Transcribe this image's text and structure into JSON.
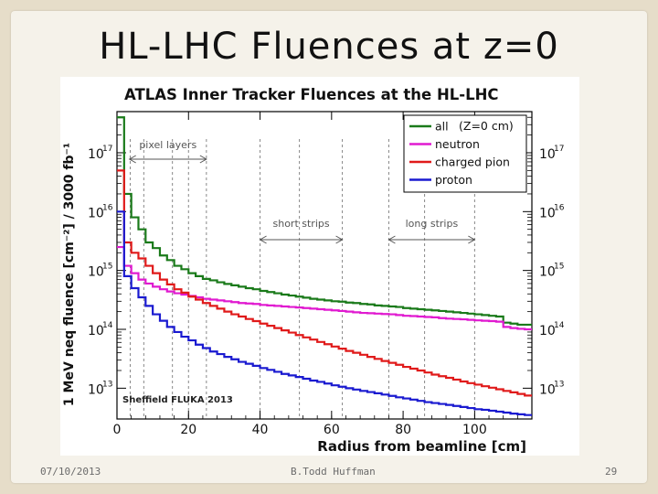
{
  "slide": {
    "title": "HL-LHC Fluences at z=0",
    "date": "07/10/2013",
    "author": "B.Todd Huffman",
    "page": "29"
  },
  "chart_data": {
    "type": "line",
    "title": "ATLAS Inner Tracker Fluences at the HL-LHC",
    "xlabel": "Radius from beamline [cm]",
    "ylabel": "1 MeV neq fluence [cm⁻²] / 3000 fb⁻¹",
    "xlim": [
      0,
      116
    ],
    "ylim": [
      3000000000000.0,
      5e+17
    ],
    "y_scale": "log",
    "x_ticks": [
      0,
      20,
      40,
      60,
      80,
      100
    ],
    "y_ticks": [
      {
        "value": 10000000000000.0,
        "label": "10",
        "exp": "13"
      },
      {
        "value": 100000000000000.0,
        "label": "10",
        "exp": "14"
      },
      {
        "value": 1000000000000000.0,
        "label": "10",
        "exp": "15"
      },
      {
        "value": 1e+16,
        "label": "10",
        "exp": "16"
      },
      {
        "value": 1e+17,
        "label": "10",
        "exp": "17"
      }
    ],
    "legend_position": "top-right",
    "legend_title": "(Z=0 cm)",
    "grid": "vertical dashed",
    "region_labels": [
      {
        "text": "pixel layers",
        "from": 3.5,
        "to": 25
      },
      {
        "text": "short strips",
        "from": 40,
        "to": 63
      },
      {
        "text": "long strips",
        "from": 76,
        "to": 100
      }
    ],
    "layer_lines": [
      3.7,
      7.5,
      15.5,
      20,
      25,
      40,
      51,
      63,
      76,
      86,
      100
    ],
    "annotation": "Sheffield FLUKA 2013",
    "x": [
      0,
      2,
      4,
      6,
      8,
      10,
      12,
      14,
      16,
      18,
      20,
      22,
      24,
      26,
      28,
      30,
      32,
      34,
      36,
      38,
      40,
      42,
      44,
      46,
      48,
      50,
      52,
      54,
      56,
      58,
      60,
      62,
      64,
      66,
      68,
      70,
      72,
      74,
      76,
      78,
      80,
      82,
      84,
      86,
      88,
      90,
      92,
      94,
      96,
      98,
      100,
      102,
      104,
      106,
      108,
      110,
      112,
      114,
      116
    ],
    "series": [
      {
        "name": "all",
        "color": "#1a7a1a",
        "values": [
          4e+17,
          2e+16,
          8000000000000000.0,
          5000000000000000.0,
          3000000000000000.0,
          2400000000000000.0,
          1800000000000000.0,
          1500000000000000.0,
          1200000000000000.0,
          1050000000000000.0,
          900000000000000.0,
          800000000000000.0,
          720000000000000.0,
          680000000000000.0,
          630000000000000.0,
          590000000000000.0,
          560000000000000.0,
          530000000000000.0,
          500000000000000.0,
          480000000000000.0,
          450000000000000.0,
          430000000000000.0,
          410000000000000.0,
          390000000000000.0,
          375000000000000.0,
          360000000000000.0,
          345000000000000.0,
          330000000000000.0,
          320000000000000.0,
          310000000000000.0,
          300000000000000.0,
          295000000000000.0,
          285000000000000.0,
          280000000000000.0,
          270000000000000.0,
          265000000000000.0,
          255000000000000.0,
          250000000000000.0,
          245000000000000.0,
          240000000000000.0,
          230000000000000.0,
          225000000000000.0,
          220000000000000.0,
          215000000000000.0,
          210000000000000.0,
          205000000000000.0,
          200000000000000.0,
          195000000000000.0,
          190000000000000.0,
          185000000000000.0,
          180000000000000.0,
          175000000000000.0,
          170000000000000.0,
          165000000000000.0,
          130000000000000.0,
          125000000000000.0,
          120000000000000.0,
          120000000000000.0,
          130000000000000.0
        ]
      },
      {
        "name": "neutron",
        "color": "#e01ad0",
        "values": [
          2500000000000000.0,
          1200000000000000.0,
          900000000000000.0,
          700000000000000.0,
          600000000000000.0,
          530000000000000.0,
          480000000000000.0,
          440000000000000.0,
          410000000000000.0,
          390000000000000.0,
          370000000000000.0,
          350000000000000.0,
          330000000000000.0,
          320000000000000.0,
          310000000000000.0,
          300000000000000.0,
          290000000000000.0,
          280000000000000.0,
          275000000000000.0,
          270000000000000.0,
          260000000000000.0,
          255000000000000.0,
          250000000000000.0,
          245000000000000.0,
          240000000000000.0,
          235000000000000.0,
          230000000000000.0,
          225000000000000.0,
          220000000000000.0,
          215000000000000.0,
          210000000000000.0,
          205000000000000.0,
          200000000000000.0,
          195000000000000.0,
          190000000000000.0,
          188000000000000.0,
          185000000000000.0,
          182000000000000.0,
          180000000000000.0,
          175000000000000.0,
          170000000000000.0,
          168000000000000.0,
          165000000000000.0,
          162000000000000.0,
          160000000000000.0,
          155000000000000.0,
          152000000000000.0,
          150000000000000.0,
          148000000000000.0,
          145000000000000.0,
          142000000000000.0,
          140000000000000.0,
          138000000000000.0,
          135000000000000.0,
          110000000000000.0,
          105000000000000.0,
          102000000000000.0,
          100000000000000.0,
          105000000000000.0
        ]
      },
      {
        "name": "charged pion",
        "color": "#e01a1a",
        "values": [
          5e+16,
          3000000000000000.0,
          2000000000000000.0,
          1600000000000000.0,
          1200000000000000.0,
          900000000000000.0,
          700000000000000.0,
          580000000000000.0,
          480000000000000.0,
          420000000000000.0,
          360000000000000.0,
          320000000000000.0,
          280000000000000.0,
          250000000000000.0,
          225000000000000.0,
          200000000000000.0,
          180000000000000.0,
          165000000000000.0,
          150000000000000.0,
          138000000000000.0,
          125000000000000.0,
          115000000000000.0,
          105000000000000.0,
          96000000000000.0,
          88000000000000.0,
          80000000000000.0,
          73000000000000.0,
          67000000000000.0,
          61000000000000.0,
          56000000000000.0,
          51000000000000.0,
          47000000000000.0,
          43000000000000.0,
          40000000000000.0,
          37000000000000.0,
          34000000000000.0,
          31500000000000.0,
          29000000000000.0,
          27000000000000.0,
          25000000000000.0,
          23000000000000.0,
          21500000000000.0,
          20000000000000.0,
          18500000000000.0,
          17000000000000.0,
          16000000000000.0,
          15000000000000.0,
          14000000000000.0,
          13000000000000.0,
          12200000000000.0,
          11500000000000.0,
          10800000000000.0,
          10200000000000.0,
          9600000000000.0,
          9000000000000.0,
          8500000000000.0,
          8000000000000.0,
          7500000000000.0,
          7000000000000.0
        ]
      },
      {
        "name": "proton",
        "color": "#1a1ad0",
        "values": [
          1e+16,
          800000000000000.0,
          500000000000000.0,
          350000000000000.0,
          250000000000000.0,
          180000000000000.0,
          140000000000000.0,
          110000000000000.0,
          90000000000000.0,
          75000000000000.0,
          65000000000000.0,
          55000000000000.0,
          48000000000000.0,
          42000000000000.0,
          38000000000000.0,
          34000000000000.0,
          31000000000000.0,
          28000000000000.0,
          26000000000000.0,
          24000000000000.0,
          22000000000000.0,
          20500000000000.0,
          19000000000000.0,
          17500000000000.0,
          16500000000000.0,
          15500000000000.0,
          14500000000000.0,
          13500000000000.0,
          12800000000000.0,
          12000000000000.0,
          11200000000000.0,
          10600000000000.0,
          10000000000000.0,
          9500000000000.0,
          9000000000000.0,
          8600000000000.0,
          8200000000000.0,
          7800000000000.0,
          7400000000000.0,
          7000000000000.0,
          6700000000000.0,
          6400000000000.0,
          6100000000000.0,
          5800000000000.0,
          5600000000000.0,
          5400000000000.0,
          5200000000000.0,
          5000000000000.0,
          4800000000000.0,
          4600000000000.0,
          4400000000000.0,
          4300000000000.0,
          4150000000000.0,
          4000000000000.0,
          3850000000000.0,
          3700000000000.0,
          3600000000000.0,
          3500000000000.0,
          3400000000000.0
        ]
      }
    ]
  }
}
